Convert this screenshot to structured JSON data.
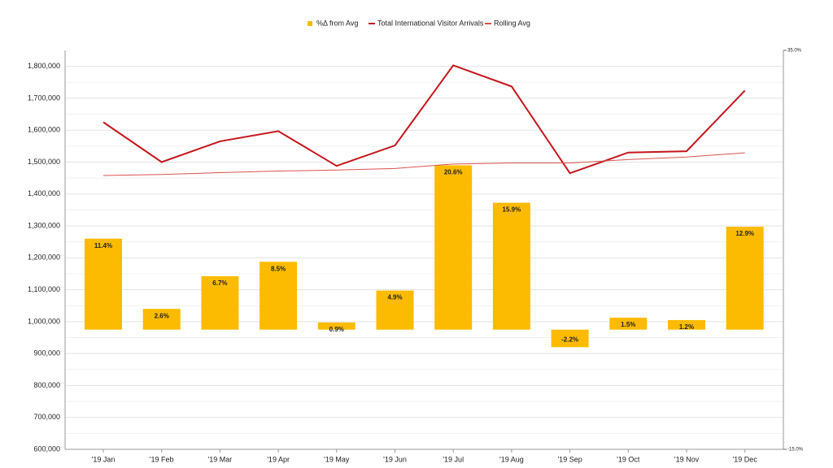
{
  "chart_data": {
    "type": "bar_line",
    "legend": "top",
    "categories": [
      "'19 Jan",
      "'19 Feb",
      "'19 Mar",
      "'19 Apr",
      "'19 May",
      "'19 Jun",
      "'19 Jul",
      "'19 Aug",
      "'19 Sep",
      "'19 Oct",
      "'19 Nov",
      "'19 Dec"
    ],
    "series": [
      {
        "name": "%Δ from Avg",
        "type": "bar",
        "axis": "y2",
        "color": "#fcbb00",
        "values": [
          11.4,
          2.6,
          6.7,
          8.5,
          0.9,
          4.9,
          20.6,
          15.9,
          -2.2,
          1.5,
          1.2,
          12.9
        ],
        "value_labels": [
          "11.4%",
          "2.6%",
          "6.7%",
          "8.5%",
          "0.9%",
          "4.9%",
          "20.6%",
          "15.9%",
          "-2.2%",
          "1.5%",
          "1.2%",
          "12.9%"
        ]
      },
      {
        "name": "Total International Visitor Arrivals",
        "type": "line",
        "color": "#c4161c",
        "values": [
          1625000,
          1500000,
          1565000,
          1597000,
          1488000,
          1552000,
          1803000,
          1737000,
          1465000,
          1530000,
          1534000,
          1724000
        ]
      },
      {
        "name": "Rolling Avg",
        "type": "line",
        "color": "#d9534f",
        "values": [
          1458000,
          1461000,
          1467000,
          1472000,
          1475000,
          1480000,
          1494000,
          1497000,
          1497000,
          1508000,
          1516000,
          1529000
        ]
      }
    ],
    "ylim": [
      600000,
      1850000
    ],
    "yticks": [
      {
        "value": 600000,
        "label": "600,000"
      },
      {
        "value": 700000,
        "label": "700,000"
      },
      {
        "value": 800000,
        "label": "800,000"
      },
      {
        "value": 900000,
        "label": "900,000"
      },
      {
        "value": 1000000,
        "label": "1,000,000"
      },
      {
        "value": 1100000,
        "label": "1,100,000"
      },
      {
        "value": 1200000,
        "label": "1,200,000"
      },
      {
        "value": 1300000,
        "label": "1,300,000"
      },
      {
        "value": 1400000,
        "label": "1,400,000"
      },
      {
        "value": 1500000,
        "label": "1,500,000"
      },
      {
        "value": 1600000,
        "label": "1,600,000"
      },
      {
        "value": 1700000,
        "label": "1,700,000"
      },
      {
        "value": 1800000,
        "label": "1,800,000"
      }
    ],
    "y2lim": [
      -15,
      35
    ],
    "y2ticks": [
      {
        "value": -15,
        "label": "-15.0%"
      },
      {
        "value": 35,
        "label": "35.0%"
      }
    ],
    "grid": true
  }
}
